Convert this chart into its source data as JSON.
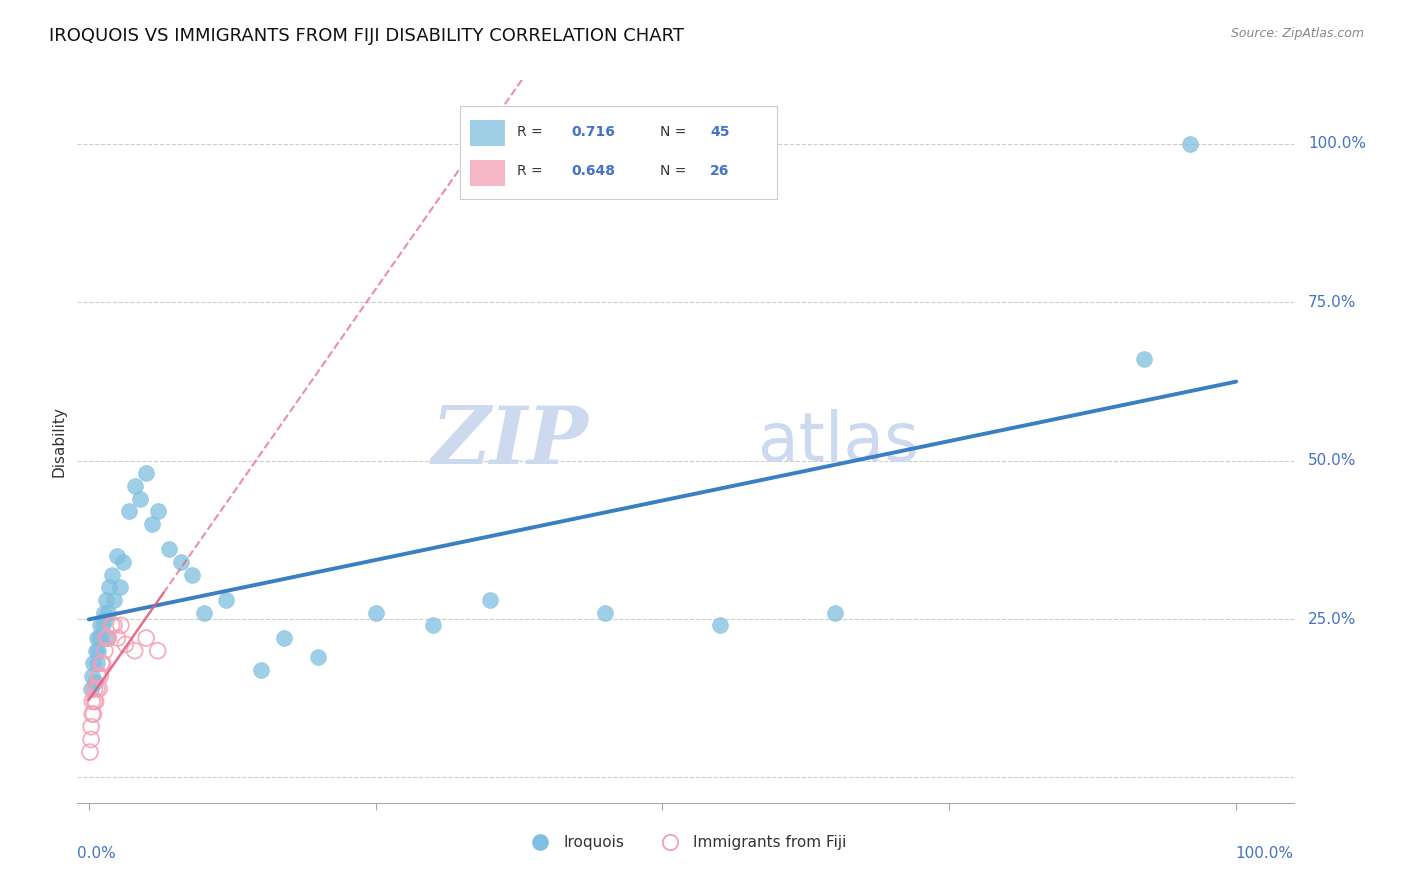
{
  "title": "IROQUOIS VS IMMIGRANTS FROM FIJI DISABILITY CORRELATION CHART",
  "source": "Source: ZipAtlas.com",
  "ylabel": "Disability",
  "blue_color": "#7fbfdf",
  "pink_color": "#f4a0b5",
  "blue_line_color": "#3a7fc1",
  "pink_line_color": "#e06080",
  "blue_R": 0.716,
  "blue_N": 45,
  "pink_R": 0.648,
  "pink_N": 26,
  "watermark_zip": "ZIP",
  "watermark_atlas": "atlas",
  "watermark_color": "#ccd9ee",
  "legend_label_blue": "Iroquois",
  "legend_label_pink": "Immigrants from Fiji",
  "axis_label_color": "#4472c4",
  "text_color": "#333333",
  "background_color": "#ffffff",
  "blue_scatter_x": [
    0.002,
    0.003,
    0.004,
    0.005,
    0.006,
    0.007,
    0.007,
    0.008,
    0.009,
    0.01,
    0.011,
    0.012,
    0.013,
    0.014,
    0.015,
    0.016,
    0.017,
    0.018,
    0.02,
    0.022,
    0.025,
    0.027,
    0.03,
    0.035,
    0.04,
    0.045,
    0.05,
    0.055,
    0.06,
    0.07,
    0.08,
    0.09,
    0.1,
    0.12,
    0.15,
    0.17,
    0.2,
    0.25,
    0.3,
    0.35,
    0.45,
    0.55,
    0.65,
    0.92,
    0.96
  ],
  "blue_scatter_y": [
    0.14,
    0.16,
    0.18,
    0.15,
    0.2,
    0.18,
    0.22,
    0.2,
    0.22,
    0.24,
    0.22,
    0.24,
    0.26,
    0.25,
    0.28,
    0.22,
    0.26,
    0.3,
    0.32,
    0.28,
    0.35,
    0.3,
    0.34,
    0.42,
    0.46,
    0.44,
    0.48,
    0.4,
    0.42,
    0.36,
    0.34,
    0.32,
    0.26,
    0.28,
    0.17,
    0.22,
    0.19,
    0.26,
    0.24,
    0.28,
    0.26,
    0.24,
    0.26,
    0.66,
    1.0
  ],
  "pink_scatter_x": [
    0.001,
    0.002,
    0.002,
    0.003,
    0.003,
    0.004,
    0.005,
    0.005,
    0.006,
    0.007,
    0.008,
    0.009,
    0.01,
    0.011,
    0.012,
    0.014,
    0.015,
    0.017,
    0.02,
    0.022,
    0.025,
    0.028,
    0.032,
    0.04,
    0.05,
    0.06
  ],
  "pink_scatter_y": [
    0.04,
    0.06,
    0.08,
    0.1,
    0.12,
    0.1,
    0.12,
    0.14,
    0.12,
    0.14,
    0.16,
    0.14,
    0.16,
    0.18,
    0.18,
    0.2,
    0.22,
    0.22,
    0.24,
    0.24,
    0.22,
    0.24,
    0.21,
    0.2,
    0.22,
    0.2
  ]
}
